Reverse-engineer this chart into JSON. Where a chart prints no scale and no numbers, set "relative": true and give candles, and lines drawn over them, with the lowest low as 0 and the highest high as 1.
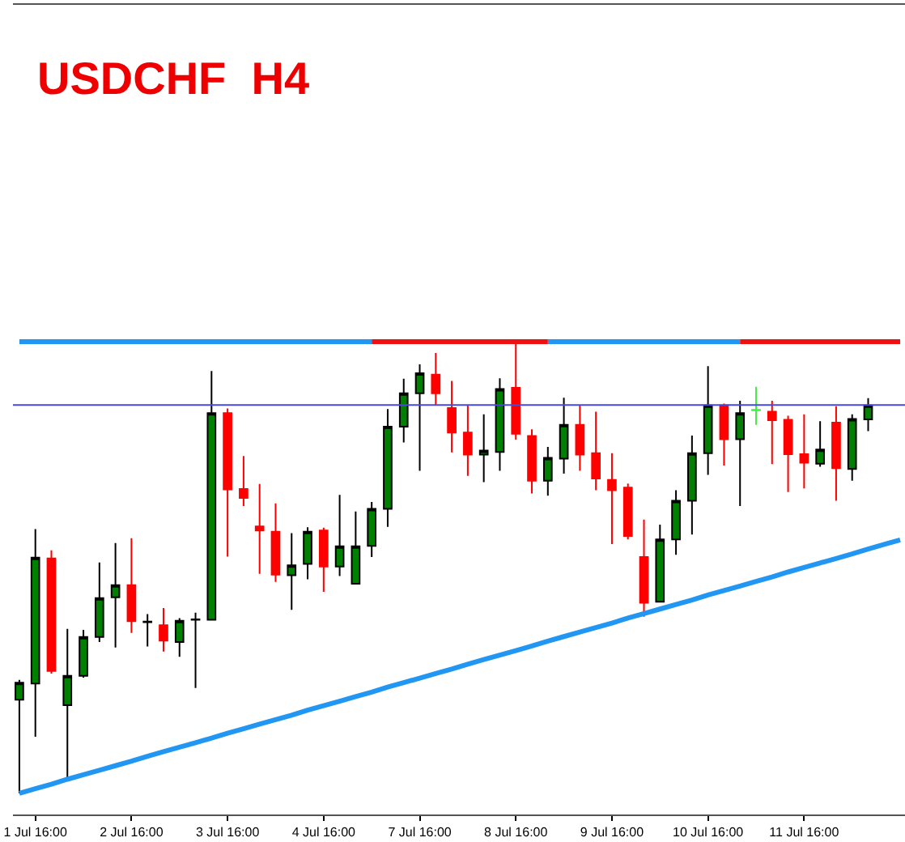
{
  "chart_data": {
    "type": "candlestick",
    "title": "USDCHF  H4",
    "relative": true,
    "categories": [
      null,
      "1 Jul 16:00",
      null,
      null,
      null,
      null,
      null,
      "2 Jul 16:00",
      null,
      null,
      null,
      null,
      null,
      "3 Jul 16:00",
      null,
      null,
      null,
      null,
      null,
      "4 Jul 16:00",
      null,
      null,
      null,
      null,
      null,
      "7 Jul 16:00",
      null,
      null,
      null,
      null,
      null,
      "8 Jul 16:00",
      null,
      null,
      null,
      null,
      null,
      "9 Jul 16:00",
      null,
      null,
      null,
      null,
      null,
      "10 Jul 16:00",
      null,
      null,
      null,
      null,
      null,
      "11 Jul 16:00",
      null,
      null,
      null,
      null,
      null,
      null
    ],
    "ohlc": [
      [
        0.207,
        0.251,
        0,
        0.245
      ],
      [
        0.243,
        0.585,
        0.125,
        0.522
      ],
      [
        0.52,
        0.538,
        0.265,
        0.271
      ],
      [
        0.195,
        0.364,
        0.03,
        0.26
      ],
      [
        0.26,
        0.362,
        0.256,
        0.346
      ],
      [
        0.346,
        0.511,
        0.335,
        0.432
      ],
      [
        0.434,
        0.554,
        0.323,
        0.461
      ],
      [
        0.461,
        0.565,
        0.355,
        0.381
      ],
      [
        0.379,
        0.397,
        0.325,
        0.38
      ],
      [
        0.372,
        0.41,
        0.314,
        0.338
      ],
      [
        0.335,
        0.388,
        0.302,
        0.382
      ],
      [
        0.384,
        0.4,
        0.233,
        0.385
      ],
      [
        0.384,
        0.935,
        0.384,
        0.842
      ],
      [
        0.842,
        0.852,
        0.524,
        0.673
      ],
      [
        0.674,
        0.747,
        0.636,
        0.654
      ],
      [
        0.591,
        0.685,
        0.486,
        0.582
      ],
      [
        0.579,
        0.642,
        0.468,
        0.484
      ],
      [
        0.483,
        0.576,
        0.406,
        0.505
      ],
      [
        0.508,
        0.589,
        0.474,
        0.579
      ],
      [
        0.582,
        0.588,
        0.446,
        0.502
      ],
      [
        0.502,
        0.661,
        0.481,
        0.547
      ],
      [
        0.464,
        0.624,
        0.464,
        0.547
      ],
      [
        0.548,
        0.645,
        0.523,
        0.63
      ],
      [
        0.63,
        0.851,
        0.59,
        0.812
      ],
      [
        0.812,
        0.918,
        0.777,
        0.886
      ],
      [
        0.886,
        0.95,
        0.714,
        0.93
      ],
      [
        0.927,
        0.975,
        0.86,
        0.886
      ],
      [
        0.853,
        0.913,
        0.755,
        0.799
      ],
      [
        0.799,
        0.86,
        0.703,
        0.75
      ],
      [
        0.75,
        0.839,
        0.689,
        0.759
      ],
      [
        0.756,
        0.919,
        0.714,
        0.895
      ],
      [
        0.898,
        1,
        0.783,
        0.796
      ],
      [
        0.791,
        0.806,
        0.664,
        0.692
      ],
      [
        0.692,
        0.767,
        0.659,
        0.743
      ],
      [
        0.741,
        0.876,
        0.708,
        0.816
      ],
      [
        0.816,
        0.86,
        0.714,
        0.75
      ],
      [
        0.753,
        0.845,
        0.671,
        0.697
      ],
      [
        0.694,
        0.753,
        0.552,
        0.671
      ],
      [
        0.677,
        0.686,
        0.562,
        0.57
      ],
      [
        0.523,
        0.606,
        0.391,
        0.422
      ],
      [
        0.424,
        0.595,
        0.424,
        0.562
      ],
      [
        0.562,
        0.671,
        0.528,
        0.648
      ],
      [
        0.648,
        0.792,
        0.573,
        0.753
      ],
      [
        0.753,
        0.946,
        0.705,
        0.859
      ],
      [
        0.859,
        0.863,
        0.726,
        0.784
      ],
      [
        0.784,
        0.869,
        0.636,
        0.842
      ],
      [
        0.849,
        0.9,
        0.816,
        0.848
      ],
      [
        0.845,
        0.869,
        0.729,
        0.826
      ],
      [
        0.827,
        0.836,
        0.667,
        0.751
      ],
      [
        0.751,
        0.839,
        0.675,
        0.732
      ],
      [
        0.73,
        0.824,
        0.723,
        0.761
      ],
      [
        0.821,
        0.857,
        0.648,
        0.72
      ],
      [
        0.718,
        0.839,
        0.692,
        0.829
      ],
      [
        0.828,
        0.875,
        0.802,
        0.859
      ],
      null,
      null
    ],
    "colors": [
      "#008000",
      "#008000",
      "#ff0000",
      "#008000",
      "#008000",
      "#008000",
      "#008000",
      "#ff0000",
      "#000000",
      "#ff0000",
      "#008000",
      "#000000",
      "#008000",
      "#ff0000",
      "#ff0000",
      "#ff0000",
      "#ff0000",
      "#008000",
      "#008000",
      "#ff0000",
      "#008000",
      "#008000",
      "#008000",
      "#008000",
      "#008000",
      "#008000",
      "#ff0000",
      "#ff0000",
      "#ff0000",
      "#008000",
      "#008000",
      "#ff0000",
      "#ff0000",
      "#008000",
      "#008000",
      "#ff0000",
      "#ff0000",
      "#ff0000",
      "#ff0000",
      "#ff0000",
      "#008000",
      "#008000",
      "#008000",
      "#008000",
      "#ff0000",
      "#008000",
      "#44ee44",
      "#ff0000",
      "#ff0000",
      "#ff0000",
      "#008000",
      "#ff0000",
      "#008000",
      "#008000",
      null,
      null
    ],
    "series": [
      {
        "type": "line",
        "color": "#2196f3",
        "values": [
          1,
          1,
          1,
          1,
          1,
          1,
          1,
          1,
          1,
          1,
          1,
          1,
          1,
          1,
          1,
          1,
          1,
          1,
          1,
          1,
          1,
          1,
          1,
          null,
          null,
          null,
          null,
          null,
          null,
          null,
          null,
          null,
          null,
          1,
          1,
          1,
          1,
          1,
          1,
          1,
          1,
          1,
          1,
          1,
          1,
          1,
          null,
          null,
          null,
          null,
          null,
          null,
          null,
          null,
          null,
          null
        ]
      },
      {
        "type": "line",
        "color": "#ee1111",
        "values": [
          null,
          null,
          null,
          null,
          null,
          null,
          null,
          null,
          null,
          null,
          null,
          null,
          null,
          null,
          null,
          null,
          null,
          null,
          null,
          null,
          null,
          null,
          1,
          1,
          1,
          1,
          1,
          1,
          1,
          1,
          1,
          1,
          1,
          1,
          null,
          null,
          null,
          null,
          null,
          null,
          null,
          null,
          null,
          null,
          null,
          1,
          1,
          1,
          1,
          1,
          1,
          1,
          1,
          1,
          1,
          1
        ]
      },
      {
        "type": "line",
        "color": "#2196f3",
        "values": [
          0,
          0.01,
          0.02,
          0.031,
          0.041,
          0.051,
          0.061,
          0.071,
          0.082,
          0.092,
          0.102,
          0.112,
          0.122,
          0.133,
          0.143,
          0.153,
          0.163,
          0.173,
          0.184,
          0.194,
          0.204,
          0.214,
          0.224,
          0.235,
          0.245,
          0.255,
          0.265,
          0.275,
          0.286,
          0.296,
          0.306,
          0.316,
          0.326,
          0.337,
          0.347,
          0.357,
          0.367,
          0.377,
          0.388,
          0.398,
          0.408,
          0.418,
          0.428,
          0.439,
          0.449,
          0.459,
          0.469,
          0.479,
          0.49,
          0.5,
          0.51,
          0.52,
          0.53,
          0.541,
          0.551,
          0.561
        ]
      }
    ],
    "ref_lines": [
      {
        "axis": "y",
        "value": 0.86,
        "color": "#4848dc"
      }
    ]
  }
}
